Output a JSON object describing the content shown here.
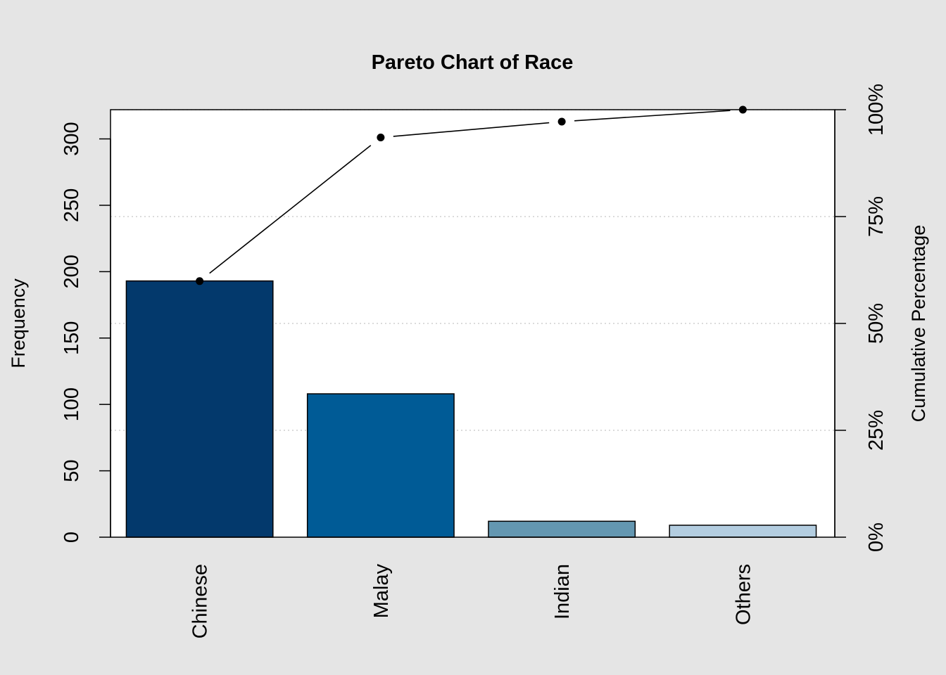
{
  "chart_data": {
    "type": "bar",
    "title": "Pareto Chart of Race",
    "ylabel": "Frequency",
    "y2label": "Cumulative Percentage",
    "categories": [
      "Chinese",
      "Malay",
      "Indian",
      "Others"
    ],
    "values": [
      193,
      108,
      12,
      9
    ],
    "bar_colors": [
      "#03396c",
      "#005b96",
      "#6497b1",
      "#b3cde0"
    ],
    "cumulative_percent": [
      59.9,
      93.5,
      97.2,
      100.0
    ],
    "ylim": [
      0,
      322
    ],
    "yticks": [
      0,
      50,
      100,
      150,
      200,
      250,
      300
    ],
    "y2ticks": [
      0,
      25,
      50,
      75,
      100
    ],
    "y2tick_labels": [
      "0%",
      "25%",
      "50%",
      "75%",
      "100%"
    ],
    "grid": "dotted horizontal at right-axis ticks"
  }
}
